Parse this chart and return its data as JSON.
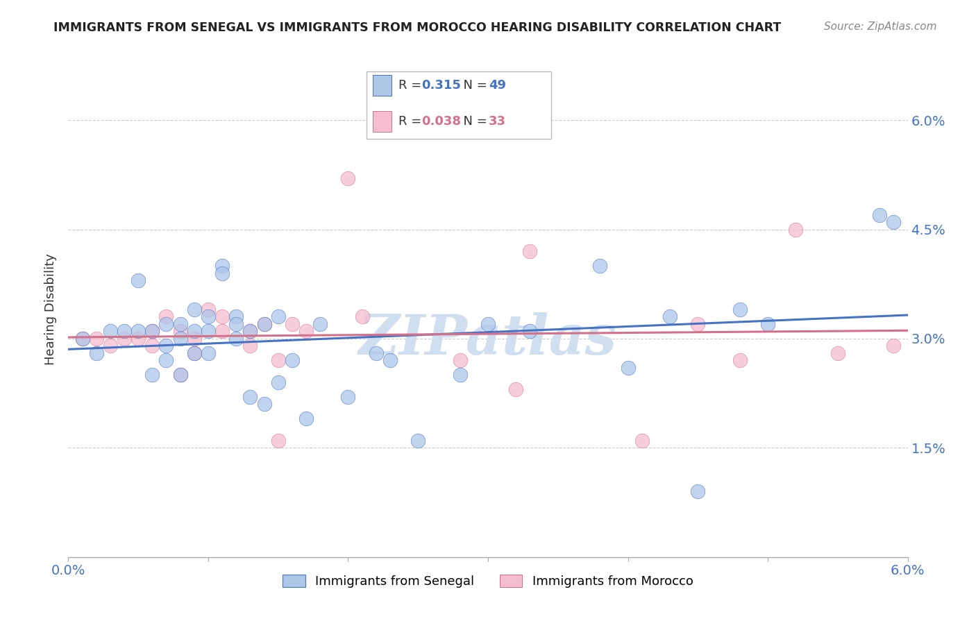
{
  "title": "IMMIGRANTS FROM SENEGAL VS IMMIGRANTS FROM MOROCCO HEARING DISABILITY CORRELATION CHART",
  "source": "Source: ZipAtlas.com",
  "ylabel": "Hearing Disability",
  "ytick_labels": [
    "1.5%",
    "3.0%",
    "4.5%",
    "6.0%"
  ],
  "ytick_values": [
    0.015,
    0.03,
    0.045,
    0.06
  ],
  "xlim": [
    0.0,
    0.06
  ],
  "ylim": [
    0.0,
    0.068
  ],
  "legend_r_senegal": "0.315",
  "legend_n_senegal": "49",
  "legend_r_morocco": "0.038",
  "legend_n_morocco": "33",
  "color_senegal": "#adc6e8",
  "color_morocco": "#f5bdd0",
  "line_color_senegal": "#4472c4",
  "line_color_morocco": "#d4708a",
  "watermark_color": "#d0dff0",
  "senegal_x": [
    0.001,
    0.002,
    0.003,
    0.004,
    0.005,
    0.005,
    0.006,
    0.006,
    0.007,
    0.007,
    0.007,
    0.008,
    0.008,
    0.008,
    0.009,
    0.009,
    0.009,
    0.01,
    0.01,
    0.01,
    0.011,
    0.011,
    0.012,
    0.012,
    0.012,
    0.013,
    0.013,
    0.014,
    0.014,
    0.015,
    0.015,
    0.016,
    0.017,
    0.018,
    0.02,
    0.022,
    0.023,
    0.025,
    0.028,
    0.03,
    0.033,
    0.038,
    0.04,
    0.043,
    0.045,
    0.048,
    0.05,
    0.058,
    0.059
  ],
  "senegal_y": [
    0.03,
    0.028,
    0.031,
    0.031,
    0.038,
    0.031,
    0.031,
    0.025,
    0.032,
    0.029,
    0.027,
    0.032,
    0.03,
    0.025,
    0.034,
    0.031,
    0.028,
    0.033,
    0.031,
    0.028,
    0.04,
    0.039,
    0.033,
    0.032,
    0.03,
    0.031,
    0.022,
    0.032,
    0.021,
    0.033,
    0.024,
    0.027,
    0.019,
    0.032,
    0.022,
    0.028,
    0.027,
    0.016,
    0.025,
    0.032,
    0.031,
    0.04,
    0.026,
    0.033,
    0.009,
    0.034,
    0.032,
    0.047,
    0.046
  ],
  "morocco_x": [
    0.001,
    0.002,
    0.003,
    0.004,
    0.005,
    0.006,
    0.006,
    0.007,
    0.008,
    0.008,
    0.009,
    0.009,
    0.01,
    0.011,
    0.011,
    0.013,
    0.013,
    0.014,
    0.015,
    0.015,
    0.016,
    0.017,
    0.02,
    0.021,
    0.028,
    0.032,
    0.033,
    0.041,
    0.045,
    0.048,
    0.052,
    0.055,
    0.059
  ],
  "morocco_y": [
    0.03,
    0.03,
    0.029,
    0.03,
    0.03,
    0.031,
    0.029,
    0.033,
    0.031,
    0.025,
    0.03,
    0.028,
    0.034,
    0.033,
    0.031,
    0.031,
    0.029,
    0.032,
    0.027,
    0.016,
    0.032,
    0.031,
    0.052,
    0.033,
    0.027,
    0.023,
    0.042,
    0.016,
    0.032,
    0.027,
    0.045,
    0.028,
    0.029
  ],
  "background_color": "#ffffff",
  "grid_color": "#cccccc"
}
